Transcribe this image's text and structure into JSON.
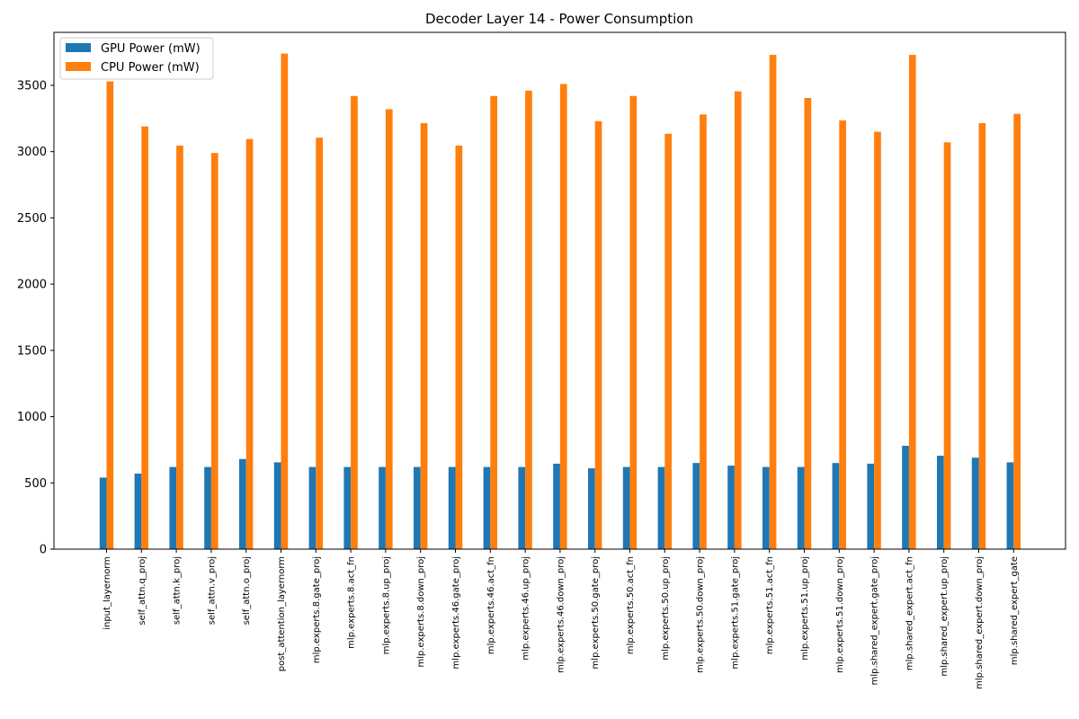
{
  "chart_data": {
    "type": "bar",
    "title": "Decoder Layer 14 - Power Consumption",
    "xlabel": "",
    "ylabel": "",
    "ylim": [
      0,
      3900
    ],
    "yticks": [
      0,
      500,
      1000,
      1500,
      2000,
      2500,
      3000,
      3500
    ],
    "grid": false,
    "legend_position": "top-left",
    "categories": [
      "input_layernorm",
      "self_attn.q_proj",
      "self_attn.k_proj",
      "self_attn.v_proj",
      "self_attn.o_proj",
      "post_attention_layernorm",
      "mlp.experts.8.gate_proj",
      "mlp.experts.8.act_fn",
      "mlp.experts.8.up_proj",
      "mlp.experts.8.down_proj",
      "mlp.experts.46.gate_proj",
      "mlp.experts.46.act_fn",
      "mlp.experts.46.up_proj",
      "mlp.experts.46.down_proj",
      "mlp.experts.50.gate_proj",
      "mlp.experts.50.act_fn",
      "mlp.experts.50.up_proj",
      "mlp.experts.50.down_proj",
      "mlp.experts.51.gate_proj",
      "mlp.experts.51.act_fn",
      "mlp.experts.51.up_proj",
      "mlp.experts.51.down_proj",
      "mlp.shared_expert.gate_proj",
      "mlp.shared_expert.act_fn",
      "mlp.shared_expert.up_proj",
      "mlp.shared_expert.down_proj",
      "mlp.shared_expert_gate"
    ],
    "series": [
      {
        "name": "GPU Power (mW)",
        "color": "#1f77b4",
        "values": [
          540,
          570,
          620,
          620,
          680,
          655,
          620,
          620,
          620,
          620,
          620,
          620,
          620,
          645,
          610,
          620,
          620,
          650,
          630,
          620,
          620,
          650,
          645,
          780,
          705,
          690,
          655
        ]
      },
      {
        "name": "CPU Power (mW)",
        "color": "#ff7f0e",
        "values": [
          3530,
          3190,
          3045,
          2990,
          3095,
          3740,
          3105,
          3420,
          3320,
          3215,
          3045,
          3420,
          3460,
          3510,
          3230,
          3420,
          3135,
          3280,
          3455,
          3730,
          3405,
          3235,
          3150,
          3730,
          3070,
          3215,
          3285
        ]
      }
    ]
  }
}
